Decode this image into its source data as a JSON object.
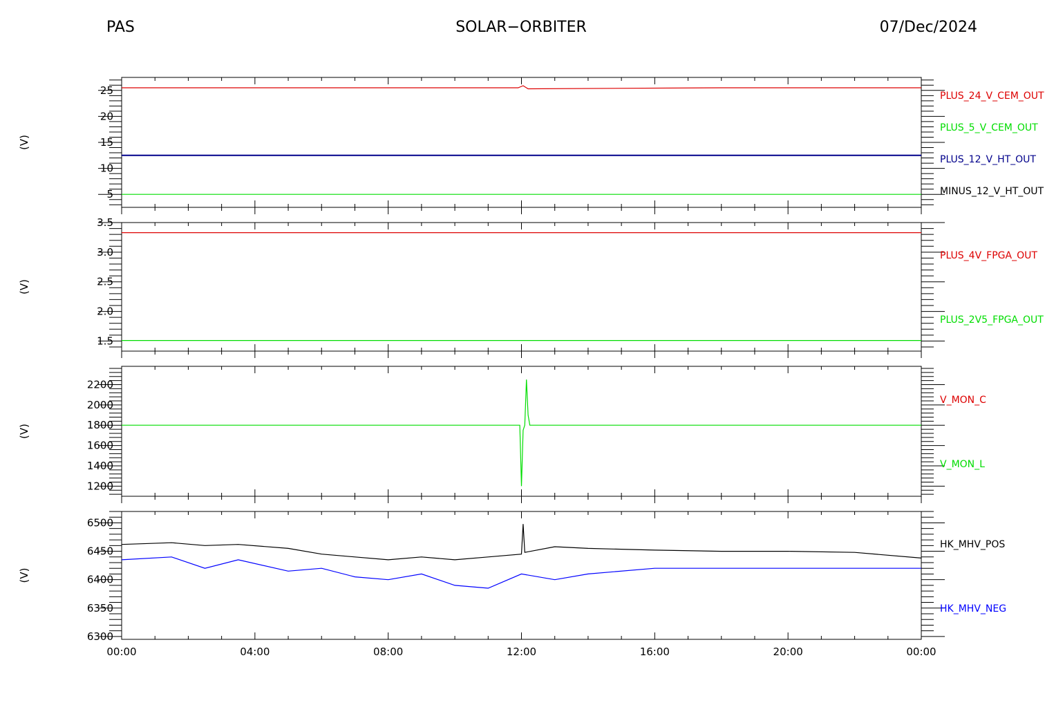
{
  "header": {
    "left": "PAS",
    "center": "SOLAR−ORBITER",
    "right": "07/Dec/2024"
  },
  "colors": {
    "red": "#dd0000",
    "green": "#00dd00",
    "navy": "#00008b",
    "blue": "#0000ff",
    "black": "#000000"
  },
  "x_axis": {
    "tick_labels": [
      "00:00",
      "04:00",
      "08:00",
      "12:00",
      "16:00",
      "20:00",
      "00:00"
    ],
    "range_hours": [
      0,
      24
    ]
  },
  "chart_data": [
    {
      "type": "line",
      "ylabel": "(V)",
      "ylim": [
        2.5,
        27.5
      ],
      "yticks": [
        5,
        10,
        15,
        20,
        25
      ],
      "series": [
        {
          "name": "PLUS_24_V_CEM_OUT",
          "color_key": "red",
          "x": [
            0,
            6,
            11.9,
            12.05,
            12.2,
            18,
            24
          ],
          "y": [
            25.5,
            25.5,
            25.5,
            25.9,
            25.3,
            25.5,
            25.5
          ]
        },
        {
          "name": "PLUS_5_V_CEM_OUT",
          "color_key": "green",
          "x": [
            0,
            24
          ],
          "y": [
            5.0,
            5.0
          ]
        },
        {
          "name": "PLUS_12_V_HT_OUT",
          "color_key": "navy",
          "x": [
            0,
            24
          ],
          "y": [
            12.5,
            12.5
          ]
        },
        {
          "name": "MINUS_12_V_HT_OUT",
          "color_key": "black",
          "x": [],
          "y": []
        }
      ]
    },
    {
      "type": "line",
      "ylabel": "(V)",
      "ylim": [
        1.33,
        3.5
      ],
      "yticks": [
        1.5,
        2.0,
        2.5,
        3.0,
        3.5
      ],
      "ytick_labels": [
        "1.5",
        "2.0",
        "2.5",
        "3.0",
        "3.5"
      ],
      "series": [
        {
          "name": "PLUS_4V_FPGA_OUT",
          "color_key": "red",
          "x": [
            0,
            24
          ],
          "y": [
            3.33,
            3.33
          ]
        },
        {
          "name": "PLUS_2V5_FPGA_OUT",
          "color_key": "green",
          "x": [
            0,
            24
          ],
          "y": [
            1.51,
            1.51
          ]
        }
      ]
    },
    {
      "type": "line",
      "ylabel": "(V)",
      "ylim": [
        1100,
        2380
      ],
      "yticks": [
        1200,
        1400,
        1600,
        1800,
        2000,
        2200
      ],
      "series": [
        {
          "name": "V_MON_C",
          "color_key": "red",
          "x": [],
          "y": []
        },
        {
          "name": "V_MON_L",
          "color_key": "green",
          "x": [
            0,
            11.95,
            12.0,
            12.05,
            12.1,
            12.15,
            12.2,
            12.25,
            24
          ],
          "y": [
            1800,
            1800,
            1200,
            1750,
            1800,
            2250,
            1900,
            1800,
            1800
          ]
        }
      ]
    },
    {
      "type": "line",
      "ylabel": "(V)",
      "ylim": [
        6295,
        6520
      ],
      "yticks": [
        6300,
        6350,
        6400,
        6450,
        6500
      ],
      "series": [
        {
          "name": "HK_MHV_POS",
          "color_key": "black",
          "x": [
            0,
            1.5,
            2.5,
            3.5,
            5,
            6,
            7,
            8,
            9,
            10,
            11,
            12,
            12.05,
            12.1,
            13,
            14,
            16,
            18,
            20,
            22,
            24
          ],
          "y": [
            6462,
            6465,
            6460,
            6462,
            6455,
            6445,
            6440,
            6435,
            6440,
            6435,
            6440,
            6445,
            6498,
            6448,
            6458,
            6455,
            6452,
            6450,
            6450,
            6448,
            6438
          ]
        },
        {
          "name": "HK_MHV_NEG",
          "color_key": "blue",
          "x": [
            0,
            1.5,
            2.5,
            3.5,
            5,
            6,
            7,
            8,
            9,
            10,
            11,
            12,
            13,
            14,
            16,
            18,
            20,
            22,
            24
          ],
          "y": [
            6435,
            6440,
            6420,
            6435,
            6415,
            6420,
            6405,
            6400,
            6410,
            6390,
            6385,
            6410,
            6400,
            6410,
            6420,
            6420,
            6420,
            6420,
            6420
          ]
        }
      ]
    }
  ]
}
